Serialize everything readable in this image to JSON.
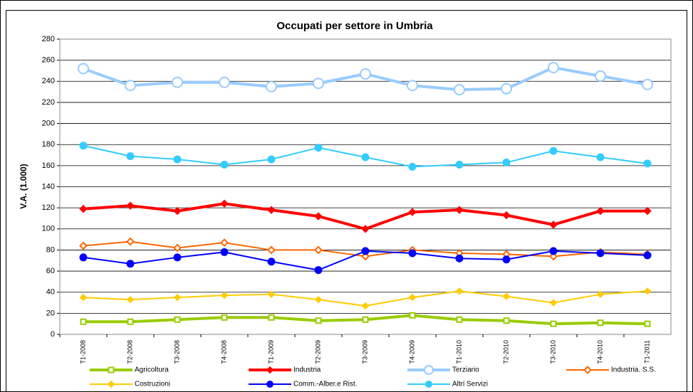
{
  "chart_data": {
    "type": "line",
    "title": "Occupati per settore in Umbria",
    "y_label": "V.A. (1.000)",
    "categories": [
      "T1-2008",
      "T2-2008",
      "T3-2008",
      "T4-2008",
      "T1-2009",
      "T2-2009",
      "T3-2009",
      "T4-2009",
      "T1-2010",
      "T2-2010",
      "T3-2010",
      "T4-2010",
      "T1-2011"
    ],
    "series": [
      {
        "name": "Agricoltura",
        "color": "#99cc00",
        "marker": "square",
        "values": [
          12,
          12,
          14,
          16,
          16,
          13,
          14,
          18,
          14,
          13,
          10,
          11,
          10
        ]
      },
      {
        "name": "Industria",
        "color": "#ff0000",
        "marker": "diamond-filled",
        "values": [
          119,
          122,
          117,
          124,
          118,
          112,
          100,
          116,
          118,
          113,
          104,
          117,
          117
        ]
      },
      {
        "name": "Terziario",
        "color": "#99ccff",
        "marker": "circle",
        "values": [
          252,
          236,
          239,
          239,
          235,
          238,
          247,
          236,
          232,
          233,
          253,
          245,
          237
        ]
      },
      {
        "name": "Industria. S.S.",
        "color": "#ff6600",
        "marker": "diamond",
        "values": [
          84,
          88,
          82,
          87,
          80,
          80,
          74,
          80,
          77,
          76,
          74,
          78,
          76
        ]
      },
      {
        "name": "Costruzioni",
        "color": "#ffcc00",
        "marker": "diamond-filled",
        "values": [
          35,
          33,
          35,
          37,
          38,
          33,
          27,
          35,
          41,
          36,
          30,
          38,
          41
        ]
      },
      {
        "name": "Comm.-Alber.e Rist.",
        "color": "#0000ff",
        "marker": "circle-filled",
        "values": [
          73,
          67,
          73,
          78,
          69,
          61,
          79,
          77,
          72,
          71,
          79,
          77,
          75
        ]
      },
      {
        "name": "Altri Servizi",
        "color": "#33ccff",
        "marker": "circle-filled",
        "values": [
          179,
          169,
          166,
          161,
          166,
          177,
          168,
          159,
          161,
          163,
          174,
          168,
          162
        ]
      }
    ],
    "ylim": [
      0,
      280
    ],
    "yticks": [
      0,
      20,
      40,
      60,
      80,
      100,
      120,
      140,
      160,
      180,
      200,
      220,
      240,
      260,
      280
    ],
    "grid": true,
    "legend": "bottom"
  }
}
